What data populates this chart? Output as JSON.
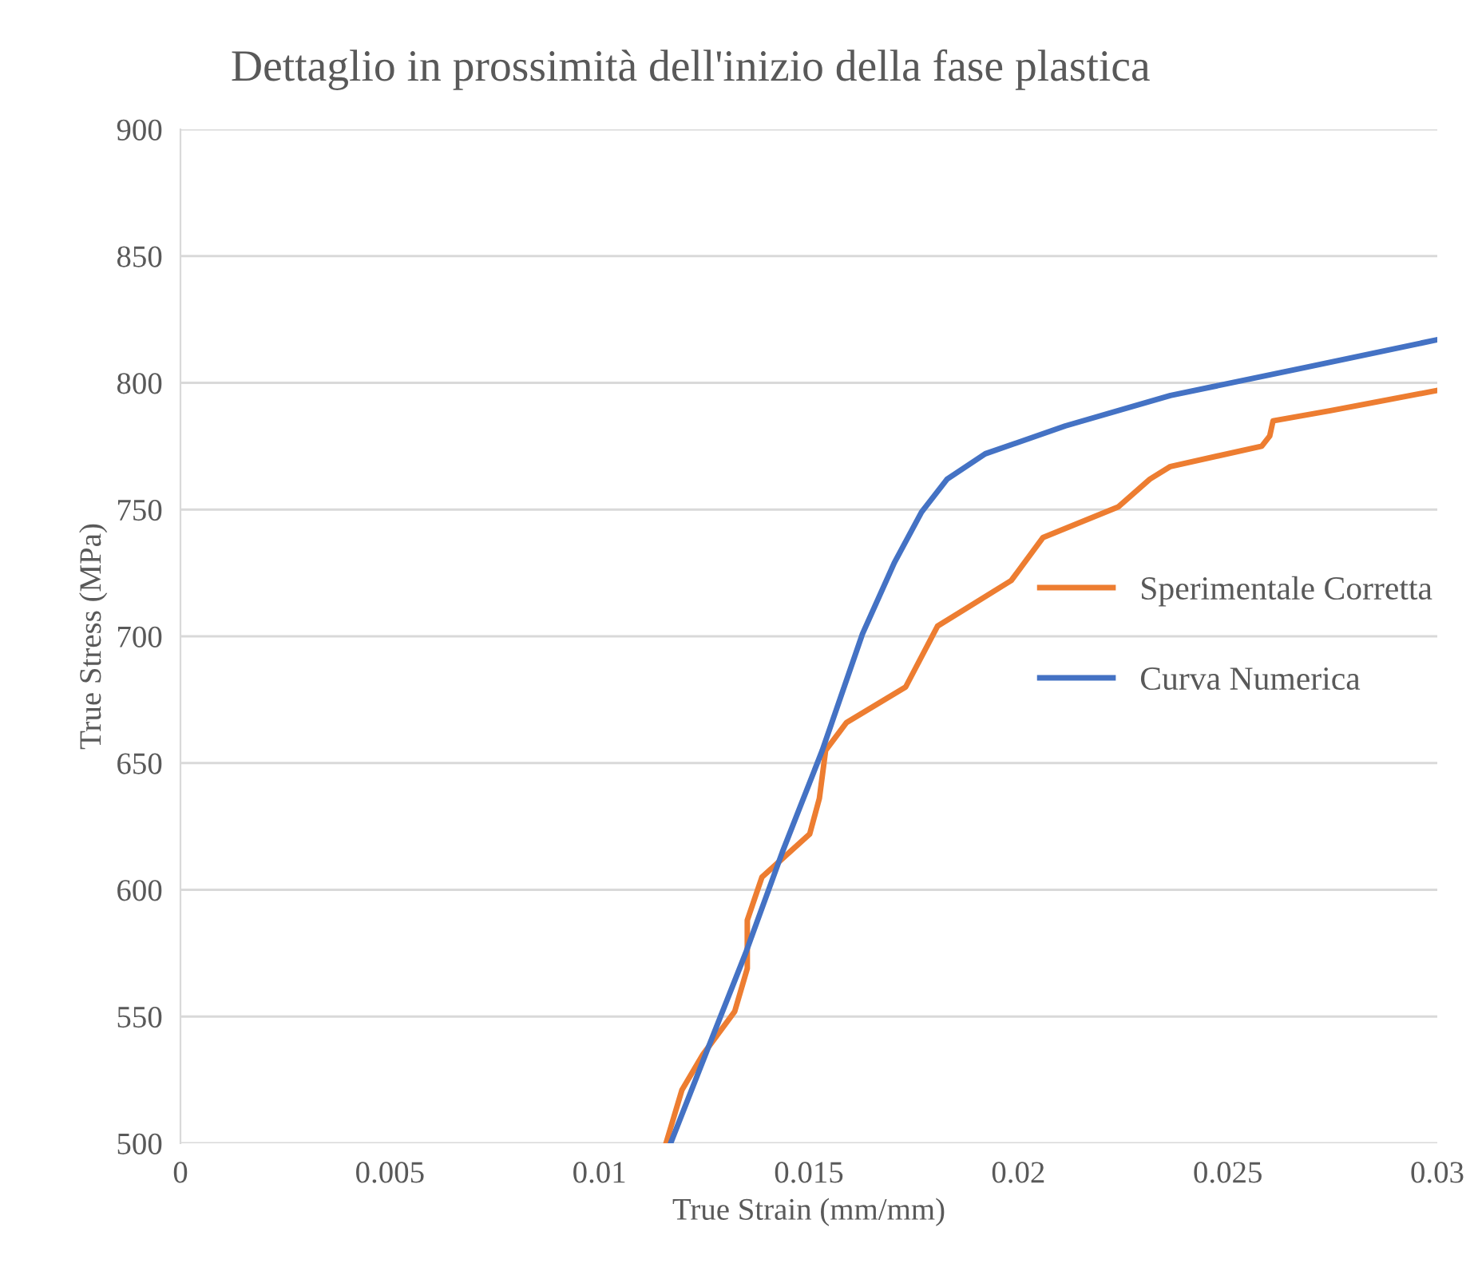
{
  "chart_data": {
    "type": "line",
    "title": "Dettaglio in prossimità dell'inizio della fase plastica",
    "xlabel": "True Strain (mm/mm)",
    "ylabel": "True Stress (MPa)",
    "xlim": [
      0,
      0.03
    ],
    "xticks": [
      0,
      0.005,
      0.01,
      0.015,
      0.02,
      0.025,
      0.03
    ],
    "ylim": [
      500,
      900
    ],
    "yticks": [
      500,
      550,
      600,
      650,
      700,
      750,
      800,
      850,
      900
    ],
    "grid": "y",
    "legend": "right",
    "marker": "none",
    "line_style": "solid",
    "series": [
      {
        "name": "Sperimentale Corretta",
        "color": "#ed7d31",
        "x": [
          0.01159,
          0.01197,
          0.01247,
          0.01323,
          0.01353,
          0.01353,
          0.01388,
          0.01502,
          0.01525,
          0.0154,
          0.0159,
          0.01731,
          0.01807,
          0.01983,
          0.02059,
          0.02238,
          0.02314,
          0.02363,
          0.02581,
          0.026,
          0.02608,
          0.02745,
          0.03
        ],
        "values": [
          500,
          521,
          535,
          552,
          569,
          588,
          605,
          622,
          636,
          655,
          666,
          680,
          704,
          722,
          739,
          751,
          762,
          767,
          775,
          779,
          785,
          789,
          797
        ]
      },
      {
        "name": "Curva Numerica",
        "color": "#4472c4",
        "x": [
          0.0117,
          0.01258,
          0.01349,
          0.01437,
          0.01532,
          0.01628,
          0.01704,
          0.01769,
          0.0183,
          0.01921,
          0.02112,
          0.02363,
          0.02684,
          0.03
        ],
        "values": [
          500,
          537,
          575,
          615,
          655,
          701,
          729,
          749,
          762,
          772,
          783,
          795,
          806,
          817
        ]
      }
    ]
  }
}
